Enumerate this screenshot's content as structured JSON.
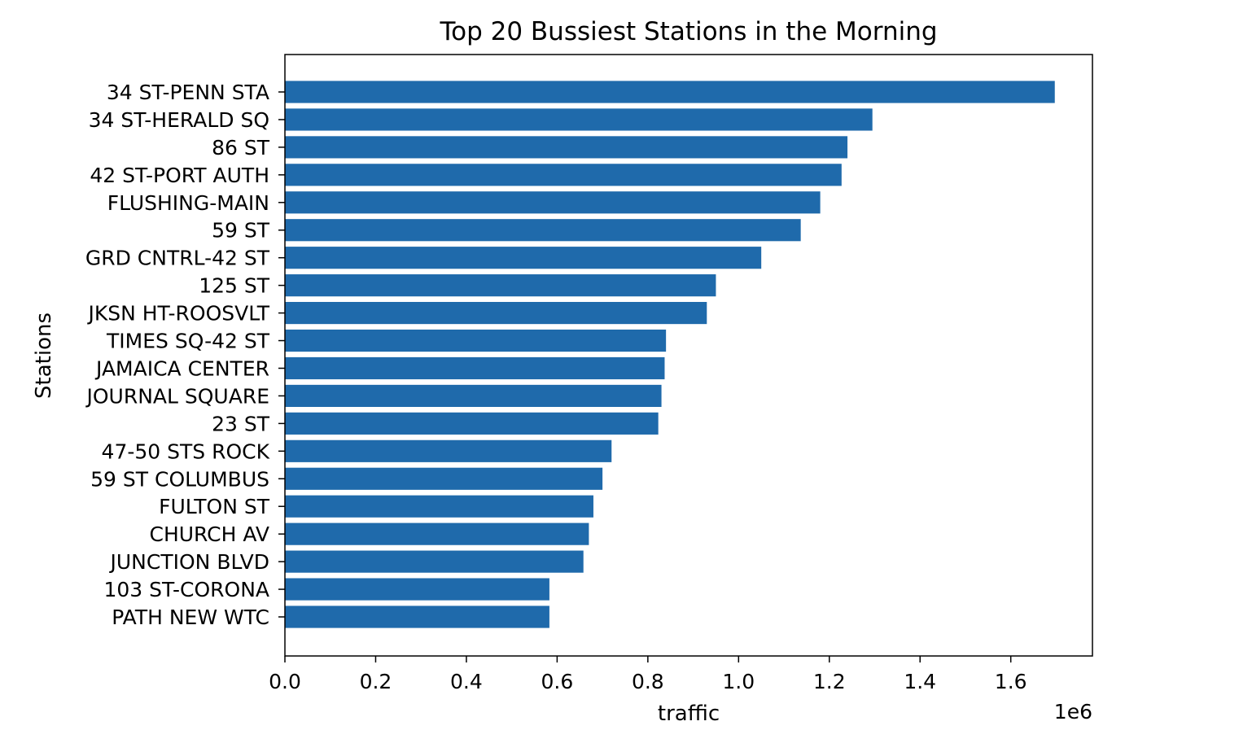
{
  "chart_data": {
    "type": "bar",
    "orientation": "horizontal",
    "title": "Top 20 Bussiest Stations in the Morning",
    "xlabel": "traffic",
    "ylabel": "Stations",
    "x_scale_label": "1e6",
    "xlim": [
      0,
      1.78
    ],
    "x_ticks": [
      0.0,
      0.2,
      0.4,
      0.6,
      0.8,
      1.0,
      1.2,
      1.4,
      1.6
    ],
    "x_tick_labels": [
      "0.0",
      "0.2",
      "0.4",
      "0.6",
      "0.8",
      "1.0",
      "1.2",
      "1.4",
      "1.6"
    ],
    "bar_color": "#1f6aab",
    "grid": false,
    "categories": [
      "34 ST-PENN STA",
      "34 ST-HERALD SQ",
      "86 ST",
      "42 ST-PORT AUTH",
      "FLUSHING-MAIN",
      "59 ST",
      "GRD CNTRL-42 ST",
      "125 ST",
      "JKSN HT-ROOSVLT",
      "TIMES SQ-42 ST",
      "JAMAICA CENTER",
      "JOURNAL SQUARE",
      "23 ST",
      "47-50 STS ROCK",
      "59 ST COLUMBUS",
      "FULTON ST",
      "CHURCH AV",
      "JUNCTION BLVD",
      "103 ST-CORONA",
      "PATH NEW WTC"
    ],
    "values": [
      1.697,
      1.295,
      1.24,
      1.227,
      1.18,
      1.137,
      1.05,
      0.95,
      0.93,
      0.84,
      0.837,
      0.83,
      0.823,
      0.72,
      0.7,
      0.68,
      0.67,
      0.658,
      0.583,
      0.583
    ]
  }
}
